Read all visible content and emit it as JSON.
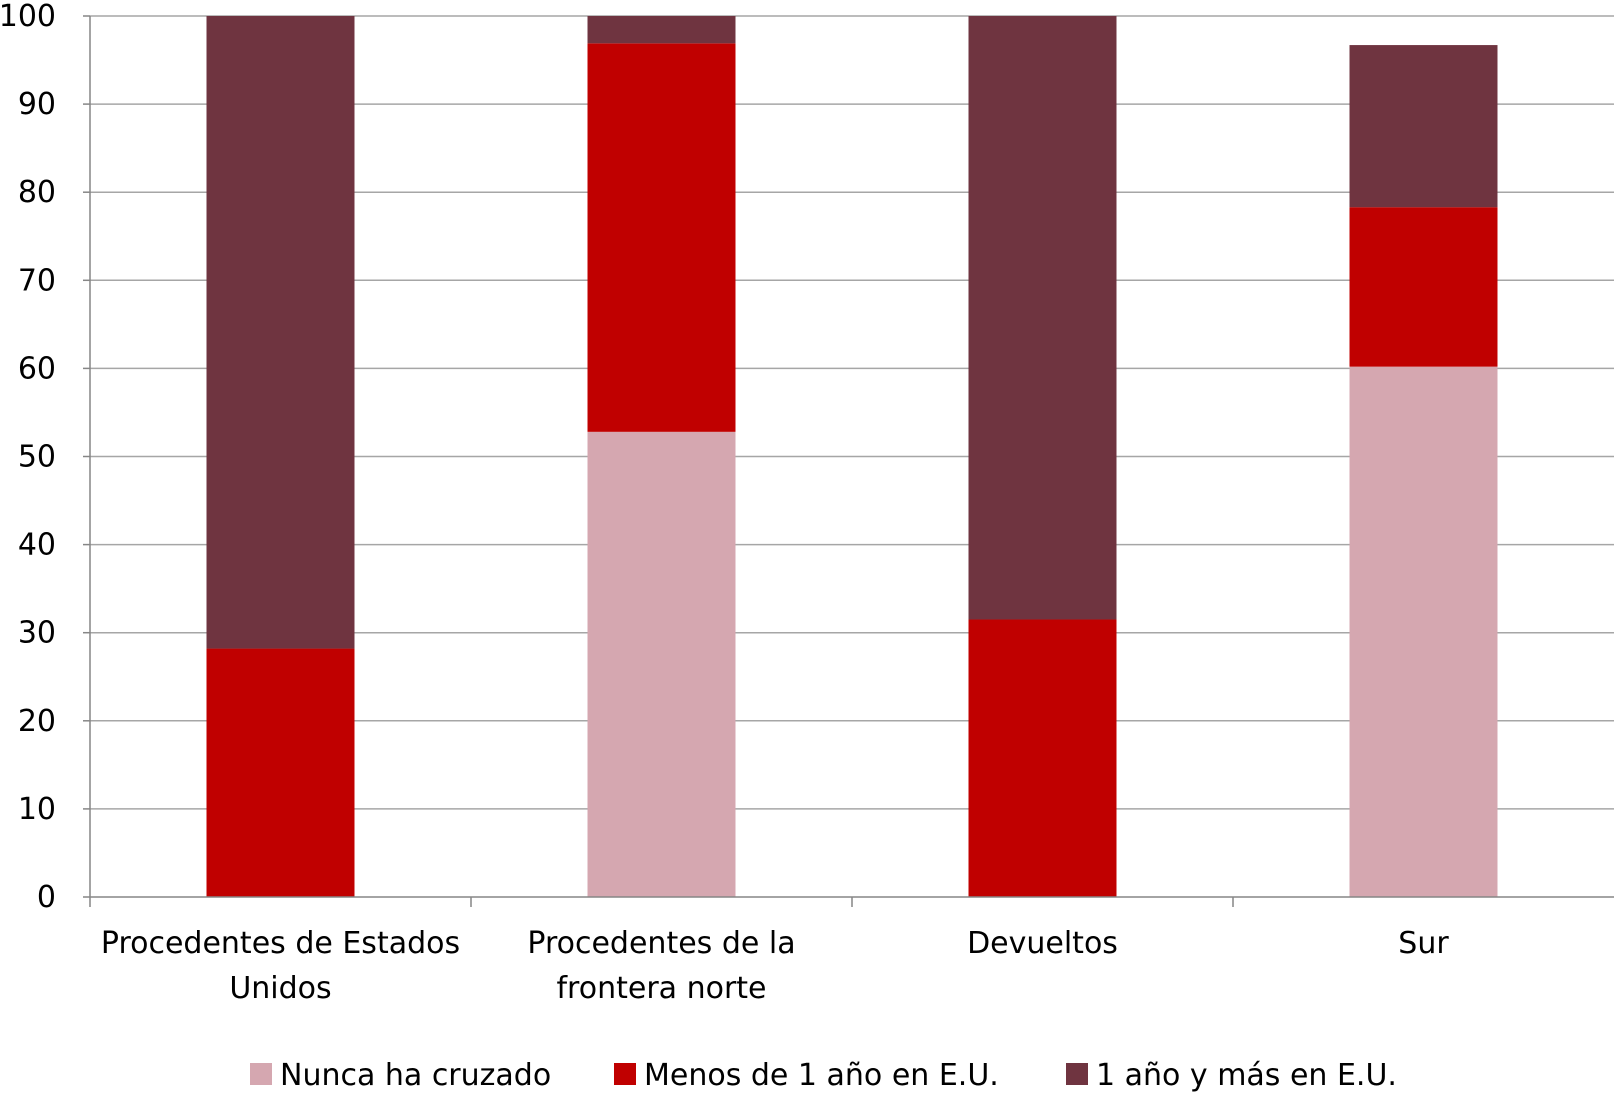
{
  "chart_data": {
    "type": "bar",
    "stacked": true,
    "categories": [
      [
        "Procedentes de Estados",
        "Unidos"
      ],
      [
        "Procedentes de la",
        "frontera norte"
      ],
      [
        "Devueltos"
      ],
      [
        "Sur"
      ]
    ],
    "series": [
      {
        "name": "Nunca ha cruzado",
        "color": "#d5a7b0",
        "values": [
          0,
          52.8,
          0,
          60.2
        ]
      },
      {
        "name": "Menos de 1 año en E.U.",
        "color": "#c00000",
        "values": [
          28.2,
          44.1,
          31.5,
          18.1
        ]
      },
      {
        "name": "1 año y más en E.U.",
        "color": "#6f3440",
        "values": [
          71.8,
          3.1,
          68.5,
          18.4
        ]
      }
    ],
    "ylim": [
      0,
      100
    ],
    "yticks": [
      0,
      10,
      20,
      30,
      40,
      50,
      60,
      70,
      80,
      90,
      100
    ],
    "grid": true,
    "grid_color": "#a6a6a6",
    "legend_position": "bottom"
  }
}
